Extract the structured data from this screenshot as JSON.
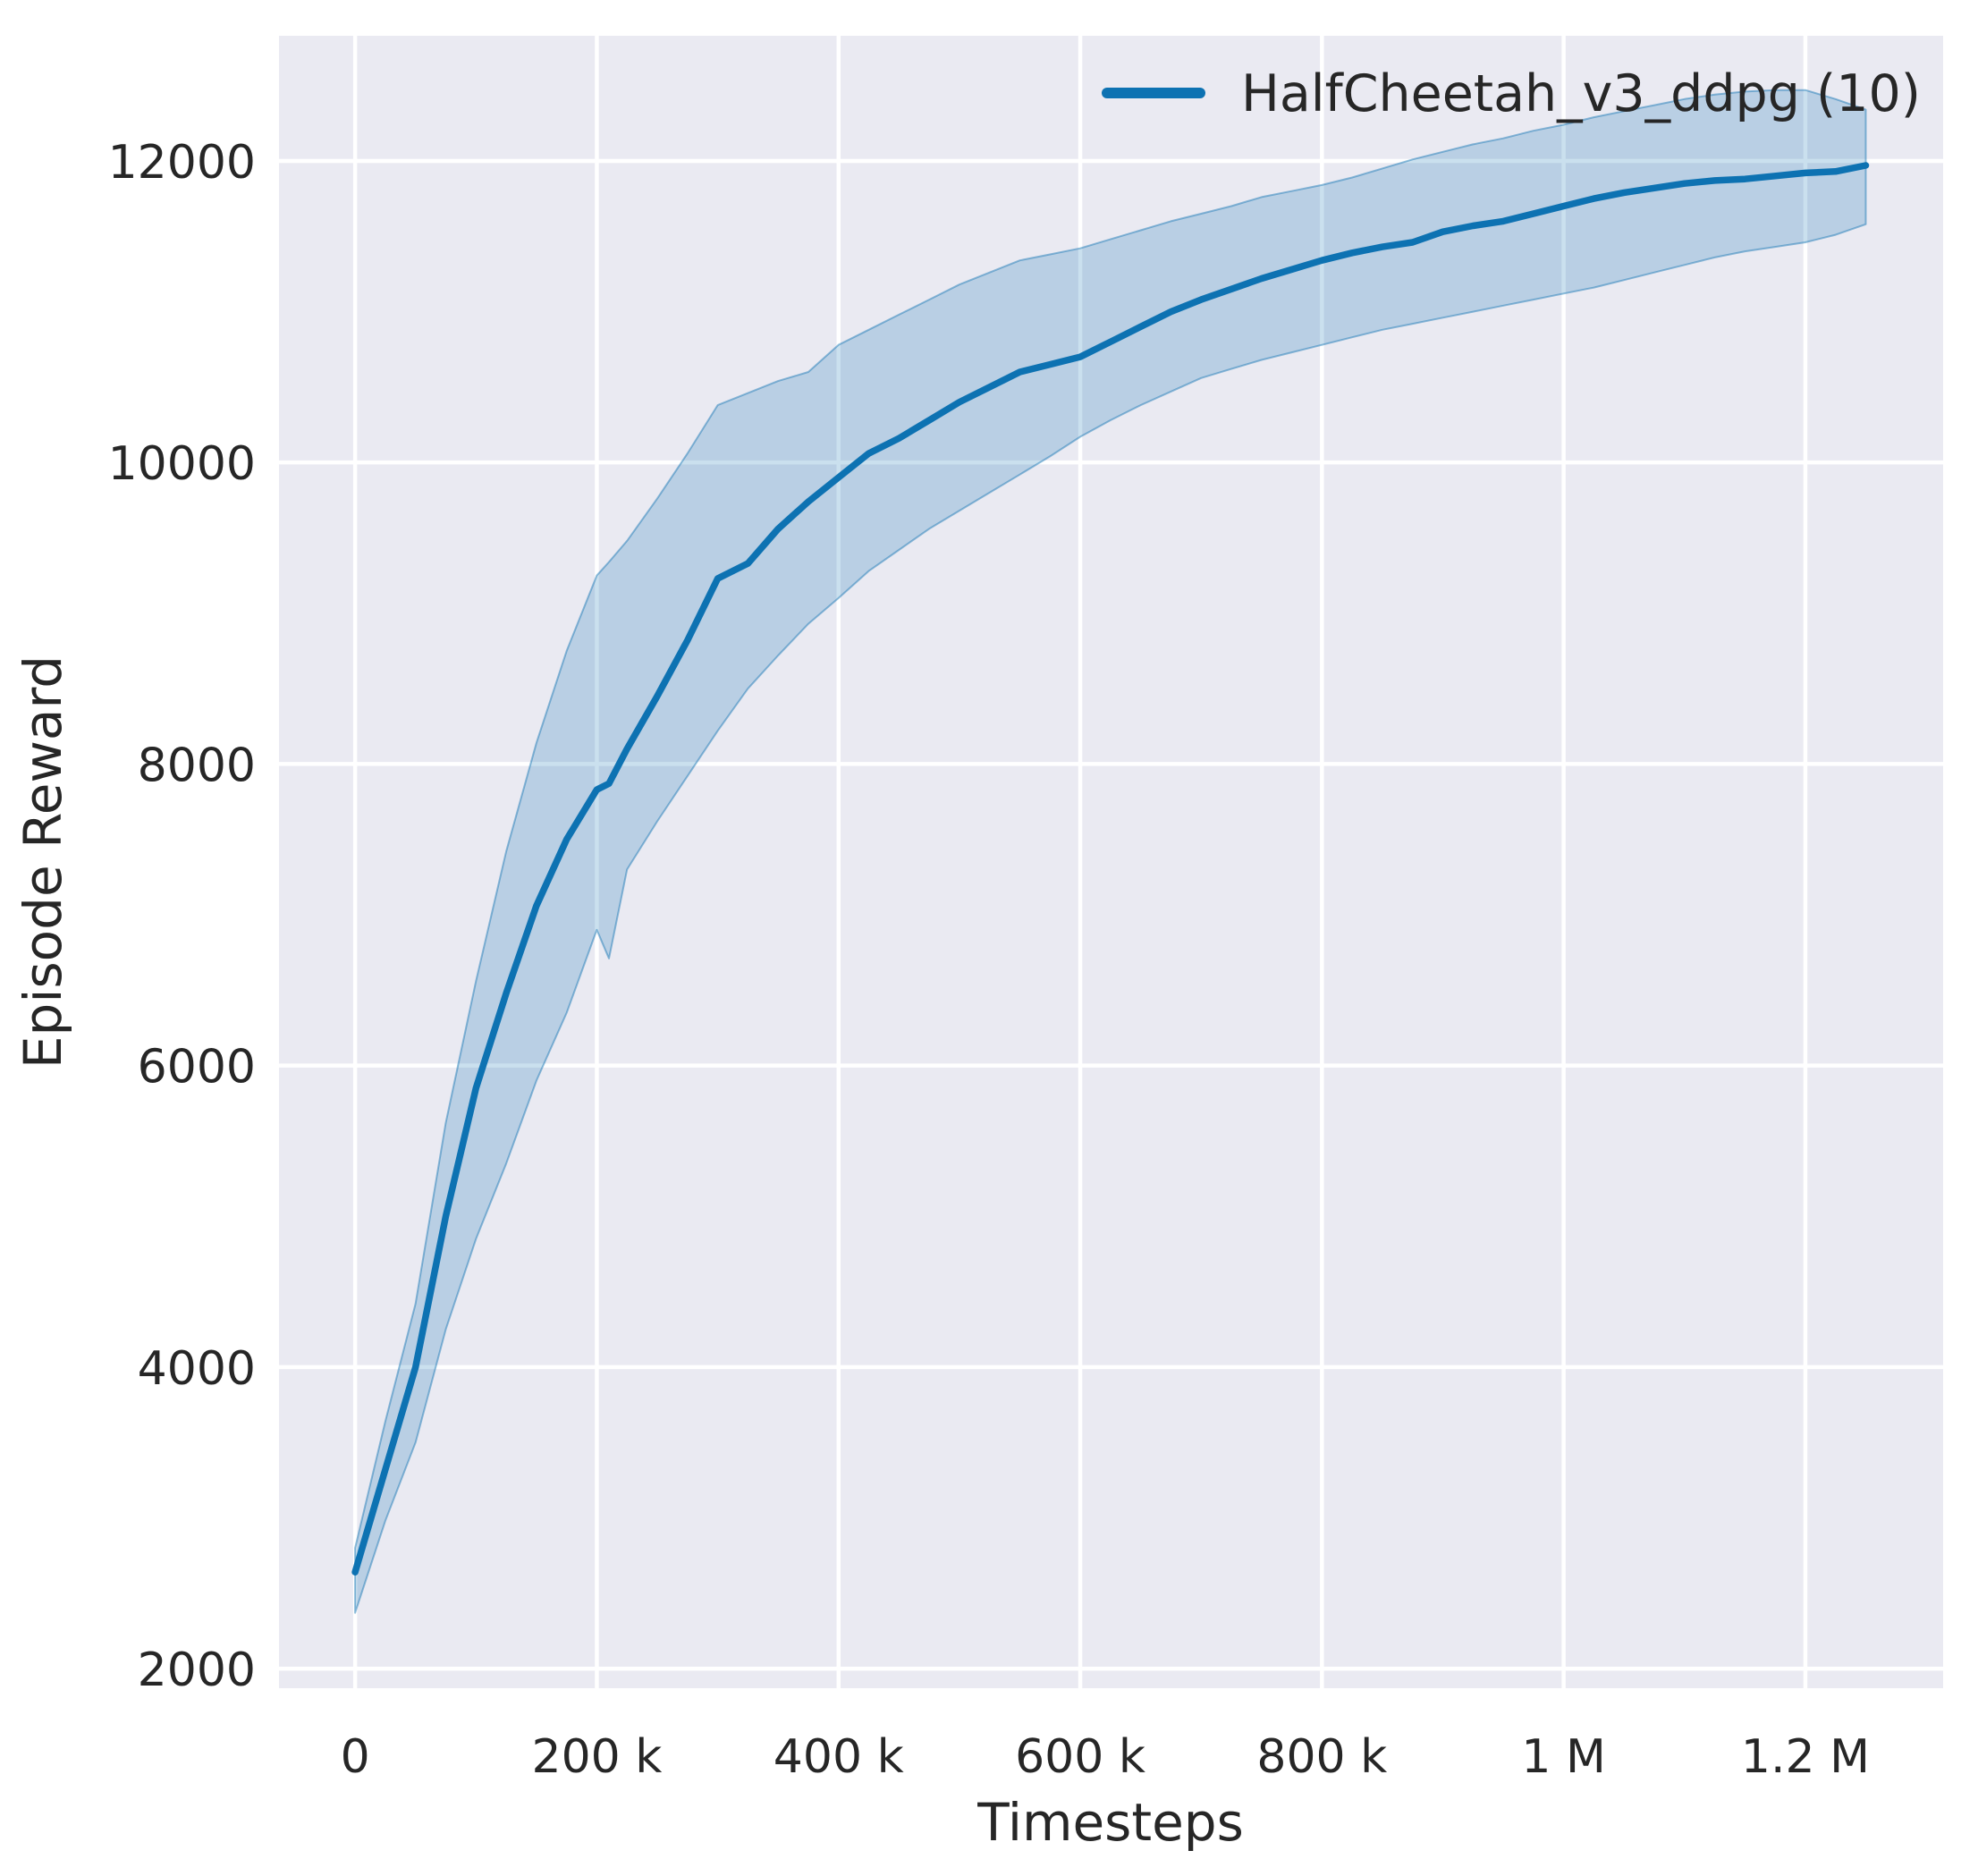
{
  "figure": {
    "background": "#ffffff",
    "axes_background": "#eaeaf2",
    "grid_color": "#ffffff",
    "text_color": "#262626"
  },
  "chart_data": {
    "type": "line",
    "title": "",
    "xlabel": "Timesteps",
    "ylabel": "Episode Reward",
    "grid": true,
    "legend_position": "upper right",
    "legend": [
      {
        "label": "HalfCheetah_v3_ddpg (10)",
        "color": "#0d72b2"
      }
    ],
    "xlim": [
      -63000,
      1314000
    ],
    "ylim": [
      1870,
      12830
    ],
    "x_ticks": [
      {
        "value": 0,
        "label": "0"
      },
      {
        "value": 200000,
        "label": "200 k"
      },
      {
        "value": 400000,
        "label": "400 k"
      },
      {
        "value": 600000,
        "label": "600 k"
      },
      {
        "value": 800000,
        "label": "800 k"
      },
      {
        "value": 1000000,
        "label": "1 M"
      },
      {
        "value": 1200000,
        "label": "1.2 M"
      }
    ],
    "y_ticks": [
      {
        "value": 2000,
        "label": "2000"
      },
      {
        "value": 4000,
        "label": "4000"
      },
      {
        "value": 6000,
        "label": "6000"
      },
      {
        "value": 8000,
        "label": "8000"
      },
      {
        "value": 10000,
        "label": "10000"
      },
      {
        "value": 12000,
        "label": "12000"
      }
    ],
    "series": [
      {
        "name": "HalfCheetah_v3_ddpg (10)",
        "color": "#0d72b2",
        "band_fill_opacity": 0.22,
        "band_edge_opacity": 0.45,
        "x": [
          0,
          25000,
          50000,
          75000,
          100000,
          125000,
          150000,
          175000,
          200000,
          210000,
          225000,
          250000,
          275000,
          300000,
          325000,
          350000,
          375000,
          400000,
          425000,
          450000,
          475000,
          500000,
          525000,
          550000,
          575000,
          600000,
          625000,
          650000,
          675000,
          700000,
          725000,
          750000,
          775000,
          800000,
          825000,
          850000,
          875000,
          900000,
          925000,
          950000,
          975000,
          1000000,
          1025000,
          1050000,
          1075000,
          1100000,
          1125000,
          1150000,
          1175000,
          1200000,
          1225000,
          1250000
        ],
        "mean": [
          2640,
          3320,
          4000,
          5000,
          5850,
          6480,
          7060,
          7500,
          7830,
          7870,
          8100,
          8450,
          8820,
          9230,
          9330,
          9560,
          9740,
          9900,
          10060,
          10160,
          10280,
          10400,
          10500,
          10600,
          10650,
          10700,
          10800,
          10900,
          11000,
          11080,
          11150,
          11220,
          11280,
          11340,
          11390,
          11430,
          11460,
          11530,
          11570,
          11600,
          11650,
          11700,
          11750,
          11790,
          11820,
          11850,
          11870,
          11880,
          11900,
          11920,
          11930,
          11970
        ],
        "lo": [
          2370,
          2980,
          3500,
          4250,
          4850,
          5350,
          5900,
          6350,
          6900,
          6710,
          7300,
          7620,
          7920,
          8220,
          8500,
          8720,
          8930,
          9100,
          9280,
          9420,
          9560,
          9680,
          9800,
          9920,
          10040,
          10170,
          10280,
          10380,
          10470,
          10560,
          10620,
          10680,
          10730,
          10780,
          10830,
          10880,
          10920,
          10960,
          11000,
          11040,
          11080,
          11120,
          11160,
          11210,
          11260,
          11310,
          11360,
          11400,
          11430,
          11460,
          11510,
          11580
        ],
        "hi": [
          2800,
          3640,
          4420,
          5620,
          6560,
          7420,
          8140,
          8750,
          9250,
          9340,
          9480,
          9760,
          10060,
          10380,
          10460,
          10540,
          10600,
          10780,
          10880,
          10980,
          11080,
          11180,
          11260,
          11340,
          11380,
          11420,
          11480,
          11540,
          11600,
          11650,
          11700,
          11760,
          11800,
          11840,
          11890,
          11950,
          12010,
          12060,
          12110,
          12150,
          12200,
          12240,
          12290,
          12330,
          12370,
          12410,
          12440,
          12460,
          12470,
          12470,
          12410,
          12340
        ]
      }
    ]
  }
}
